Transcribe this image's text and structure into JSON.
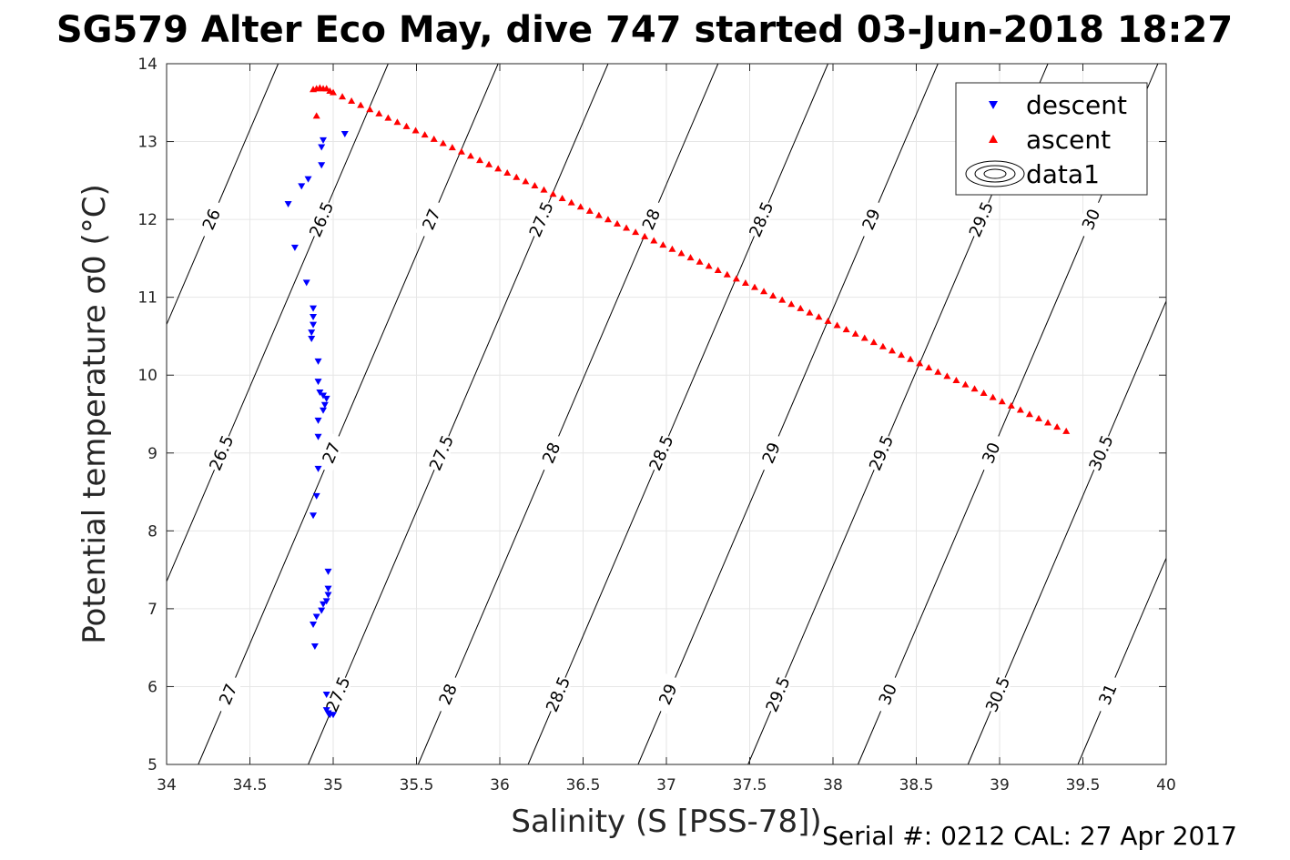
{
  "chart_data": {
    "type": "scatter",
    "title": "SG579 Alter Eco May, dive 747 started 03-Jun-2018 18:27",
    "xlabel": "Salinity (S [PSS-78])",
    "ylabel": "Potential temperature σ0 (°C)",
    "xlim": [
      34,
      40
    ],
    "ylim": [
      5,
      14
    ],
    "xticks": [
      34,
      34.5,
      35,
      35.5,
      36,
      36.5,
      37,
      37.5,
      38,
      38.5,
      39,
      39.5,
      40
    ],
    "yticks": [
      5,
      6,
      7,
      8,
      9,
      10,
      11,
      12,
      13,
      14
    ],
    "grid": true,
    "legend_position": "top-right",
    "series": [
      {
        "name": "descent",
        "marker": "triangle-down",
        "color": "#0000ff",
        "points": [
          [
            35.07,
            13.1
          ],
          [
            34.94,
            13.02
          ],
          [
            34.93,
            12.93
          ],
          [
            34.93,
            12.7
          ],
          [
            34.85,
            12.52
          ],
          [
            34.81,
            12.43
          ],
          [
            34.73,
            12.2
          ],
          [
            34.77,
            11.64
          ],
          [
            34.84,
            11.19
          ],
          [
            34.88,
            10.86
          ],
          [
            34.88,
            10.75
          ],
          [
            34.88,
            10.65
          ],
          [
            34.87,
            10.55
          ],
          [
            34.87,
            10.47
          ],
          [
            34.91,
            10.18
          ],
          [
            34.91,
            9.92
          ],
          [
            34.92,
            9.78
          ],
          [
            34.94,
            9.74
          ],
          [
            34.96,
            9.7
          ],
          [
            34.95,
            9.62
          ],
          [
            34.94,
            9.55
          ],
          [
            34.91,
            9.42
          ],
          [
            34.91,
            9.21
          ],
          [
            34.91,
            8.8
          ],
          [
            34.9,
            8.45
          ],
          [
            34.88,
            8.2
          ],
          [
            34.97,
            7.48
          ],
          [
            34.97,
            7.26
          ],
          [
            34.97,
            7.18
          ],
          [
            34.96,
            7.1
          ],
          [
            34.94,
            7.06
          ],
          [
            34.93,
            6.98
          ],
          [
            34.9,
            6.9
          ],
          [
            34.88,
            6.8
          ],
          [
            34.89,
            6.52
          ],
          [
            34.96,
            5.9
          ],
          [
            34.96,
            5.7
          ],
          [
            34.97,
            5.66
          ],
          [
            34.98,
            5.64
          ],
          [
            35.0,
            5.64
          ]
        ]
      },
      {
        "name": "ascent",
        "marker": "triangle-up",
        "color": "#ff0000",
        "points": [
          [
            34.88,
            13.67
          ],
          [
            34.9,
            13.68
          ],
          [
            34.92,
            13.69
          ],
          [
            34.94,
            13.68
          ],
          [
            34.96,
            13.68
          ],
          [
            34.98,
            13.65
          ],
          [
            34.9,
            13.33
          ],
          [
            35.0,
            13.63
          ],
          [
            39.4,
            9.28
          ]
        ]
      },
      {
        "name": "data1",
        "marker": "contour",
        "color": "#000000",
        "isopycnals": [
          26,
          26.5,
          27,
          27.5,
          28,
          28.5,
          29,
          29.5,
          30,
          30.5,
          31
        ]
      }
    ],
    "contour_label_text": [
      "26",
      "26.5",
      "26.5",
      "27",
      "27",
      "27",
      "27.5",
      "27.5",
      "27.5",
      "28",
      "28",
      "28",
      "28.5",
      "28.5",
      "28.5",
      "29",
      "29",
      "29",
      "29.5",
      "29.5",
      "29.5",
      "30",
      "30",
      "30",
      "30.5",
      "30.5",
      "31",
      "31"
    ]
  },
  "footer": {
    "serial": "Serial #: 0212  CAL: 27 Apr 2017"
  }
}
